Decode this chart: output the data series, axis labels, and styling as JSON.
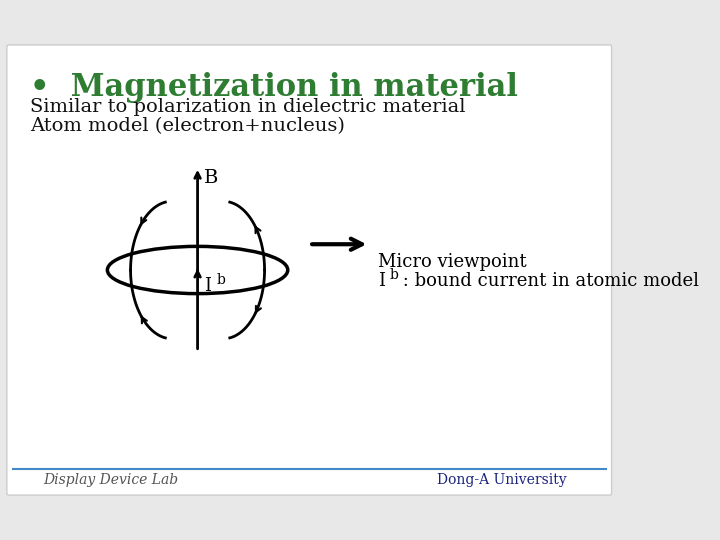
{
  "bg_color": "#e8e8e8",
  "slide_bg": "#f5f5f5",
  "title_text": "Magnetization in material",
  "title_color": "#2e7d32",
  "bullet": "•",
  "line1": "Similar to polarization in dielectric material",
  "line2": "Atom model (electron+nucleus)",
  "text_color": "#111111",
  "label_B": "B",
  "label_Ib": "I",
  "label_Ib_sub": "b",
  "micro_text1": "Micro viewpoint",
  "micro_text2": "I",
  "micro_text2_sub": "b",
  "micro_text2_rest": " : bound current in atomic model",
  "footer_left": "Display Device Lab",
  "footer_right": "Dong-A University",
  "line_color": "#000000",
  "footer_line_color": "#4488cc"
}
